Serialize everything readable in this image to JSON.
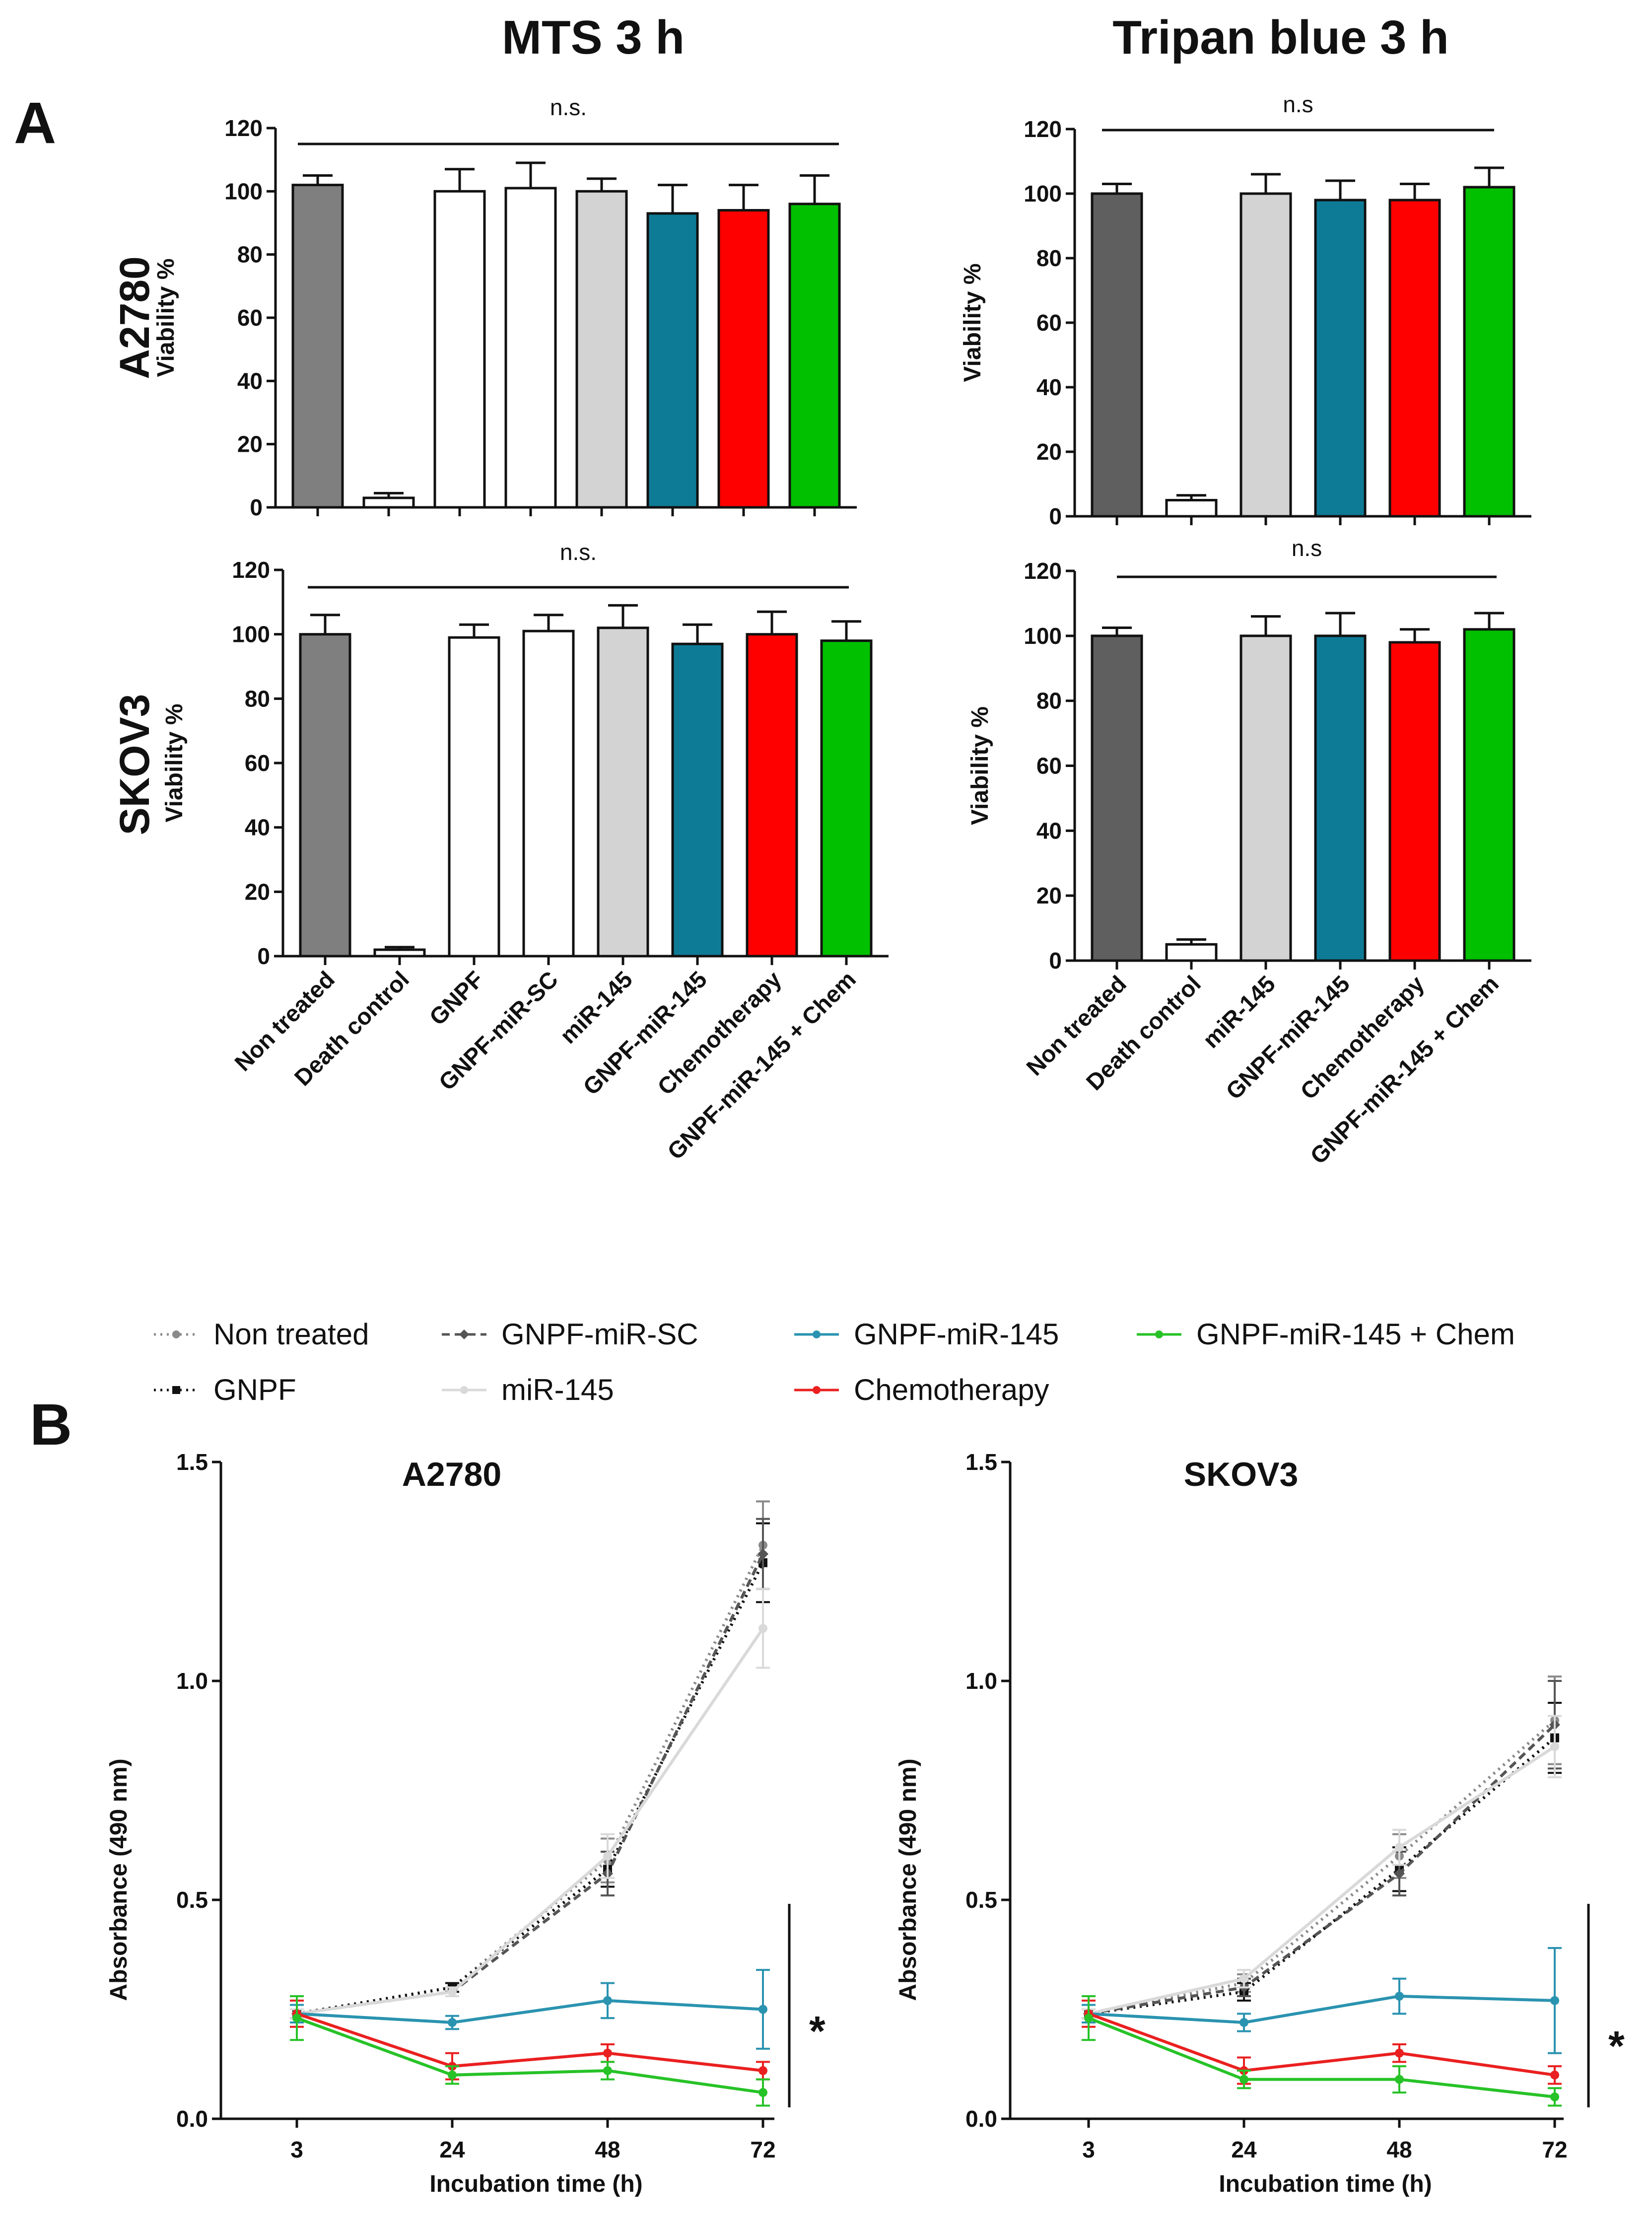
{
  "figure": {
    "col_titles": [
      "MTS 3 h",
      "Tripan blue 3 h"
    ],
    "row_labels": [
      "A2780",
      "SKOV3"
    ],
    "panel_labels": [
      "A",
      "B"
    ]
  },
  "legend": [
    {
      "label": "Non treated",
      "color": "#8a8a8a",
      "dash": "dotted",
      "marker": "circle"
    },
    {
      "label": "GNPF",
      "color": "#111111",
      "dash": "dotted",
      "marker": "square"
    },
    {
      "label": "GNPF-miR-SC",
      "color": "#555555",
      "dash": "dashed",
      "marker": "diamond"
    },
    {
      "label": "miR-145",
      "color": "#d9d9d9",
      "dash": "solid",
      "marker": "circle"
    },
    {
      "label": "GNPF-miR-145",
      "color": "#2a93b0",
      "dash": "solid",
      "marker": "circle"
    },
    {
      "label": "Chemotherapy",
      "color": "#ea2020",
      "dash": "solid",
      "marker": "circle"
    },
    {
      "label": "GNPF-miR-145 + Chem",
      "color": "#27c227",
      "dash": "solid",
      "marker": "circle"
    }
  ],
  "chart_data": [
    {
      "type": "bar",
      "panel": "A",
      "column": "MTS 3 h",
      "row": "A2780",
      "ylabel": "Viability %",
      "ylim": [
        0,
        120
      ],
      "yticks": [
        0,
        20,
        40,
        60,
        80,
        100,
        120
      ],
      "categories": [
        "Non treated",
        "Death control",
        "GNPF",
        "GNPF-miR-SC",
        "miR-145",
        "GNPF-miR-145",
        "Chemotherapy",
        "GNPF-miR-145 + Chem"
      ],
      "values": [
        102,
        3,
        100,
        101,
        100,
        93,
        94,
        96
      ],
      "errors": [
        3,
        1.5,
        7,
        8,
        4,
        9,
        8,
        9
      ],
      "colors": [
        "#7f7f7f",
        "#ffffff",
        "#ffffff",
        "#ffffff",
        "#d3d3d3",
        "#0e7b96",
        "#fe0000",
        "#00c000"
      ],
      "annotation": "n.s."
    },
    {
      "type": "bar",
      "panel": "A",
      "column": "Tripan blue 3 h",
      "row": "A2780",
      "ylabel": "Viability %",
      "ylim": [
        0,
        120
      ],
      "yticks": [
        0,
        20,
        40,
        60,
        80,
        100,
        120
      ],
      "categories": [
        "Non treated",
        "Death control",
        "miR-145",
        "GNPF-miR-145",
        "Chemotherapy",
        "GNPF-miR-145 + Chem"
      ],
      "values": [
        100,
        5,
        100,
        98,
        98,
        102
      ],
      "errors": [
        3,
        1.5,
        6,
        6,
        5,
        6
      ],
      "colors": [
        "#5f5f5f",
        "#ffffff",
        "#d3d3d3",
        "#0e7b96",
        "#fe0000",
        "#00c000"
      ],
      "annotation": "n.s"
    },
    {
      "type": "bar",
      "panel": "A",
      "column": "MTS 3 h",
      "row": "SKOV3",
      "ylabel": "Viability %",
      "ylim": [
        0,
        120
      ],
      "yticks": [
        0,
        20,
        40,
        60,
        80,
        100,
        120
      ],
      "categories": [
        "Non treated",
        "Death control",
        "GNPF",
        "GNPF-miR-SC",
        "miR-145",
        "GNPF-miR-145",
        "Chemotherapy",
        "GNPF-miR-145 + Chem"
      ],
      "values": [
        100,
        2,
        99,
        101,
        102,
        97,
        100,
        98
      ],
      "errors": [
        6,
        0.8,
        4,
        5,
        7,
        6,
        7,
        6
      ],
      "colors": [
        "#7f7f7f",
        "#ffffff",
        "#ffffff",
        "#ffffff",
        "#d3d3d3",
        "#0e7b96",
        "#fe0000",
        "#00c000"
      ],
      "annotation": "n.s."
    },
    {
      "type": "bar",
      "panel": "A",
      "column": "Tripan blue 3 h",
      "row": "SKOV3",
      "ylabel": "Viability %",
      "ylim": [
        0,
        120
      ],
      "yticks": [
        0,
        20,
        40,
        60,
        80,
        100,
        120
      ],
      "categories": [
        "Non treated",
        "Death control",
        "miR-145",
        "GNPF-miR-145",
        "Chemotherapy",
        "GNPF-miR-145 + Chem"
      ],
      "values": [
        100,
        5,
        100,
        100,
        98,
        102
      ],
      "errors": [
        2.5,
        1.5,
        6,
        7,
        4,
        5
      ],
      "colors": [
        "#5f5f5f",
        "#ffffff",
        "#d3d3d3",
        "#0e7b96",
        "#fe0000",
        "#00c000"
      ],
      "annotation": "n.s"
    },
    {
      "type": "line",
      "panel": "B",
      "title": "A2780",
      "xlabel": "Incubation time (h)",
      "ylabel": "Absorbance (490 nm)",
      "x": [
        3,
        24,
        48,
        72
      ],
      "ylim": [
        0,
        1.5
      ],
      "yticks": [
        0.0,
        0.5,
        1.0,
        1.5
      ],
      "annotation": "*",
      "series": [
        {
          "name": "Non treated",
          "values": [
            0.24,
            0.3,
            0.59,
            1.31
          ],
          "errors": [
            0.01,
            0.01,
            0.05,
            0.1
          ]
        },
        {
          "name": "GNPF",
          "values": [
            0.24,
            0.3,
            0.57,
            1.27
          ],
          "errors": [
            0.01,
            0.01,
            0.04,
            0.09
          ]
        },
        {
          "name": "GNPF-miR-SC",
          "values": [
            0.24,
            0.29,
            0.56,
            1.29
          ],
          "errors": [
            0.01,
            0.01,
            0.05,
            0.08
          ]
        },
        {
          "name": "miR-145",
          "values": [
            0.24,
            0.29,
            0.6,
            1.12
          ],
          "errors": [
            0.01,
            0.01,
            0.05,
            0.09
          ]
        },
        {
          "name": "GNPF-miR-145",
          "values": [
            0.24,
            0.22,
            0.27,
            0.25
          ],
          "errors": [
            0.02,
            0.015,
            0.04,
            0.09
          ]
        },
        {
          "name": "Chemotherapy",
          "values": [
            0.24,
            0.12,
            0.15,
            0.11
          ],
          "errors": [
            0.03,
            0.03,
            0.02,
            0.02
          ]
        },
        {
          "name": "GNPF-miR-145 + Chem",
          "values": [
            0.23,
            0.1,
            0.11,
            0.06
          ],
          "errors": [
            0.05,
            0.02,
            0.02,
            0.03
          ]
        }
      ]
    },
    {
      "type": "line",
      "panel": "B",
      "title": "SKOV3",
      "xlabel": "Incubation time (h)",
      "ylabel": "Absorbance (490 nm)",
      "x": [
        3,
        24,
        48,
        72
      ],
      "ylim": [
        0,
        1.5
      ],
      "yticks": [
        0.0,
        0.5,
        1.0,
        1.5
      ],
      "annotation": "*",
      "series": [
        {
          "name": "Non treated",
          "values": [
            0.24,
            0.31,
            0.6,
            0.91
          ],
          "errors": [
            0.01,
            0.02,
            0.05,
            0.1
          ]
        },
        {
          "name": "GNPF",
          "values": [
            0.24,
            0.29,
            0.57,
            0.87
          ],
          "errors": [
            0.01,
            0.02,
            0.05,
            0.08
          ]
        },
        {
          "name": "GNPF-miR-SC",
          "values": [
            0.24,
            0.3,
            0.56,
            0.9
          ],
          "errors": [
            0.01,
            0.02,
            0.05,
            0.1
          ]
        },
        {
          "name": "miR-145",
          "values": [
            0.24,
            0.32,
            0.62,
            0.85
          ],
          "errors": [
            0.01,
            0.02,
            0.04,
            0.07
          ]
        },
        {
          "name": "GNPF-miR-145",
          "values": [
            0.24,
            0.22,
            0.28,
            0.27
          ],
          "errors": [
            0.02,
            0.02,
            0.04,
            0.12
          ]
        },
        {
          "name": "Chemotherapy",
          "values": [
            0.24,
            0.11,
            0.15,
            0.1
          ],
          "errors": [
            0.03,
            0.03,
            0.02,
            0.02
          ]
        },
        {
          "name": "GNPF-miR-145 + Chem",
          "values": [
            0.23,
            0.09,
            0.09,
            0.05
          ],
          "errors": [
            0.05,
            0.02,
            0.03,
            0.02
          ]
        }
      ]
    }
  ]
}
